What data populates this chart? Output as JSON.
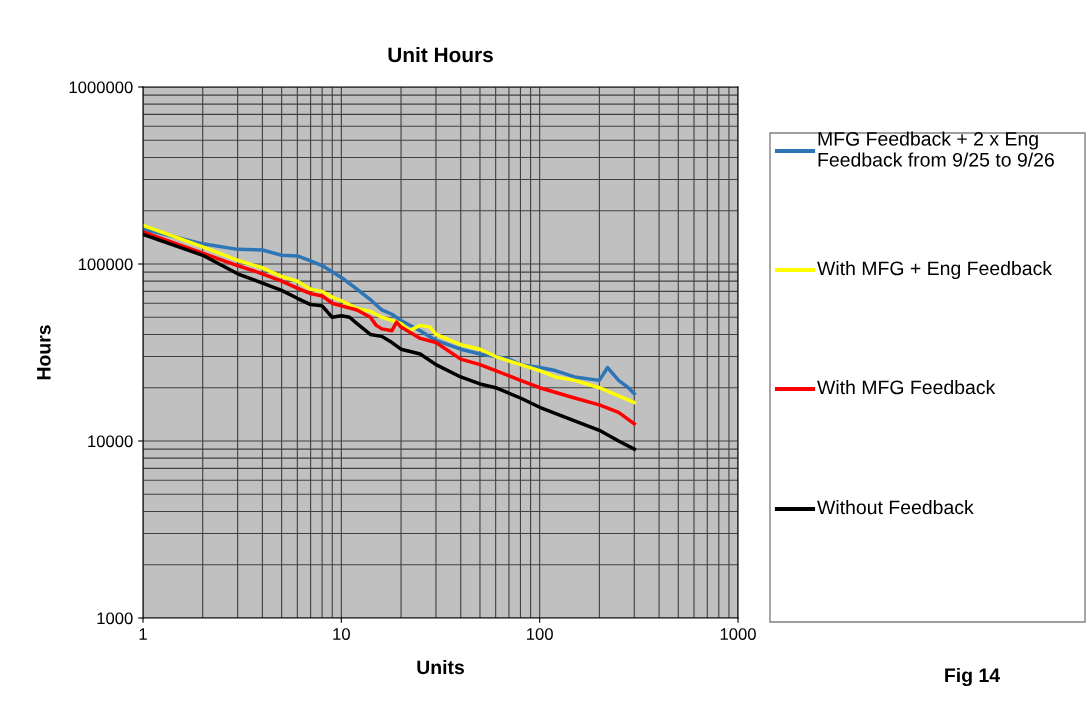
{
  "chart_data": {
    "type": "line",
    "title": "Unit Hours",
    "xlabel": "Units",
    "ylabel": "Hours",
    "log": "xy",
    "xlim": [
      1,
      1000
    ],
    "xticks": [
      1,
      10,
      100,
      1000
    ],
    "ylim": [
      1000,
      1000000
    ],
    "yticks": [
      1000,
      10000,
      100000,
      1000000
    ],
    "grid": true,
    "legend": "right",
    "marker": "none",
    "line_style": "solid",
    "annotations": [
      "Fig 14"
    ],
    "series": [
      {
        "name": "MFG Feedback + 2 x Eng Feedback from 9/25 to 9/26",
        "color": "#2e75b6",
        "x": [
          1,
          2,
          3,
          4,
          5,
          6,
          7,
          8,
          10,
          12,
          14,
          16,
          18,
          20,
          25,
          30,
          40,
          50,
          60,
          70,
          80,
          100,
          120,
          150,
          200,
          220,
          250,
          280,
          300
        ],
        "values": [
          158000,
          130000,
          121000,
          120000,
          112000,
          111000,
          104000,
          98000,
          84000,
          72000,
          63000,
          55000,
          52000,
          48000,
          42000,
          37000,
          33000,
          31000,
          30000,
          29000,
          27000,
          26000,
          25000,
          23000,
          22000,
          26000,
          22000,
          20000,
          18500
        ]
      },
      {
        "name": "With MFG + Eng Feedback",
        "color": "#ffff00",
        "x": [
          1,
          2,
          3,
          4,
          5,
          6,
          7,
          8,
          9,
          10,
          12,
          14,
          16,
          18,
          20,
          22,
          25,
          28,
          30,
          40,
          50,
          60,
          80,
          100,
          120,
          150,
          200,
          250,
          300
        ],
        "values": [
          165000,
          125000,
          105000,
          95000,
          85000,
          80000,
          72000,
          70000,
          65000,
          62000,
          56000,
          54000,
          50000,
          48000,
          46000,
          42000,
          45000,
          44000,
          40000,
          35000,
          33000,
          30000,
          27000,
          25000,
          23000,
          22000,
          20000,
          18000,
          16500
        ]
      },
      {
        "name": "With MFG Feedback",
        "color": "#ff0000",
        "x": [
          1,
          2,
          3,
          4,
          5,
          6,
          7,
          8,
          9,
          10,
          12,
          14,
          15,
          16,
          18,
          19,
          20,
          25,
          30,
          40,
          50,
          60,
          80,
          100,
          150,
          200,
          250,
          300
        ],
        "values": [
          152000,
          115000,
          98000,
          88000,
          80000,
          73000,
          68000,
          66000,
          60000,
          58000,
          55000,
          50000,
          45000,
          43000,
          42000,
          47000,
          44000,
          38000,
          36000,
          29000,
          27000,
          25000,
          22000,
          20000,
          17500,
          16000,
          14500,
          12500
        ]
      },
      {
        "name": "Without Feedback",
        "color": "#000000",
        "x": [
          1,
          2,
          3,
          4,
          5,
          6,
          7,
          8,
          9,
          10,
          11,
          12,
          14,
          16,
          18,
          20,
          25,
          30,
          40,
          50,
          60,
          80,
          100,
          150,
          200,
          250,
          300
        ],
        "values": [
          147000,
          112000,
          88000,
          78000,
          71000,
          64000,
          59000,
          58000,
          50000,
          51000,
          50000,
          46000,
          40000,
          39000,
          36000,
          33000,
          31000,
          27000,
          23000,
          21000,
          20000,
          17500,
          15500,
          13000,
          11500,
          10000,
          9000
        ]
      }
    ]
  }
}
